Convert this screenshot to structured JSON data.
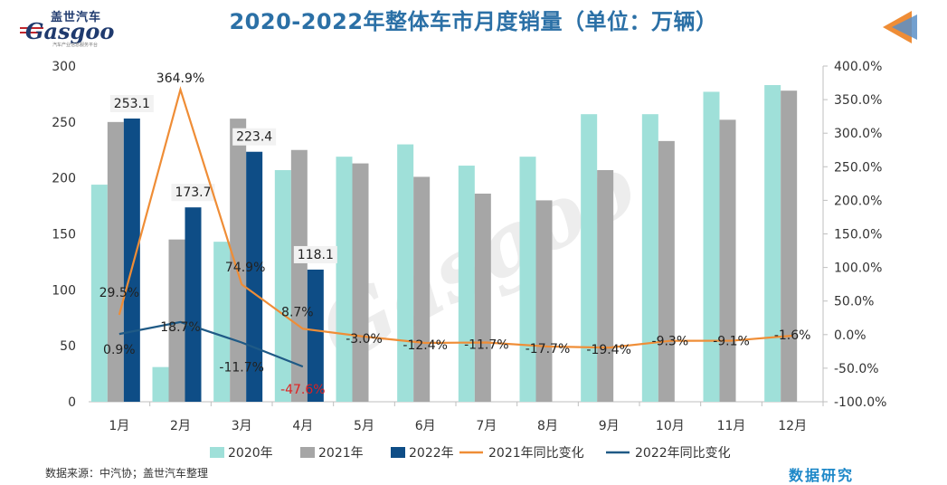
{
  "header": {
    "title": "2020-2022年整体车市月度销量（单位：万辆）",
    "logo_cn": "盖世汽车",
    "logo_en": "Gasgoo",
    "logo_sub": "汽车产业信息服务平台"
  },
  "footer": {
    "source": "数据来源：中汽协；盖世汽车整理",
    "brand": "数据研究"
  },
  "chart_data": {
    "type": "bar",
    "categories": [
      "1月",
      "2月",
      "3月",
      "4月",
      "5月",
      "6月",
      "7月",
      "8月",
      "9月",
      "10月",
      "11月",
      "12月"
    ],
    "series": [
      {
        "name": "2020年",
        "color": "#9fe0d9",
        "values": [
          194,
          31,
          143,
          207,
          219,
          230,
          211,
          219,
          257,
          257,
          277,
          283
        ]
      },
      {
        "name": "2021年",
        "color": "#a6a6a6",
        "values": [
          250,
          145,
          253,
          225,
          213,
          201,
          186,
          180,
          207,
          233,
          252,
          278
        ]
      },
      {
        "name": "2022年",
        "color": "#0e4d86",
        "values": [
          253.1,
          173.7,
          223.4,
          118.1,
          null,
          null,
          null,
          null,
          null,
          null,
          null,
          null
        ]
      }
    ],
    "bar_labels_2022": [
      "253.1",
      "173.7",
      "223.4",
      "118.1"
    ],
    "lines": [
      {
        "name": "2021年同比变化",
        "color": "#ef8d36",
        "values": [
          29.5,
          364.9,
          74.9,
          8.7,
          -3.0,
          -12.4,
          -11.7,
          -17.7,
          -19.4,
          -9.3,
          -9.1,
          -1.6
        ],
        "labels": [
          "29.5%",
          "364.9%",
          "74.9%",
          "8.7%",
          "-3.0%",
          "-12.4%",
          "-11.7%",
          "-17.7%",
          "-19.4%",
          "-9.3%",
          "-9.1%",
          "-1.6%"
        ]
      },
      {
        "name": "2022年同比变化",
        "color": "#1f5a86",
        "values": [
          0.9,
          18.7,
          -11.7,
          -47.6,
          null,
          null,
          null,
          null,
          null,
          null,
          null,
          null
        ],
        "labels": [
          "0.9%",
          "18.7%",
          "-11.7%",
          "-47.6%"
        ]
      }
    ],
    "y_left": {
      "min": 0,
      "max": 300,
      "ticks": [
        "0",
        "50",
        "100",
        "150",
        "200",
        "250",
        "300"
      ]
    },
    "y_right": {
      "min": -100,
      "max": 400,
      "ticks": [
        "-100.0%",
        "-50.0%",
        "0.0%",
        "50.0%",
        "100.0%",
        "150.0%",
        "200.0%",
        "250.0%",
        "300.0%",
        "350.0%",
        "400.0%"
      ]
    },
    "legend_position": "bottom",
    "grid": false
  }
}
